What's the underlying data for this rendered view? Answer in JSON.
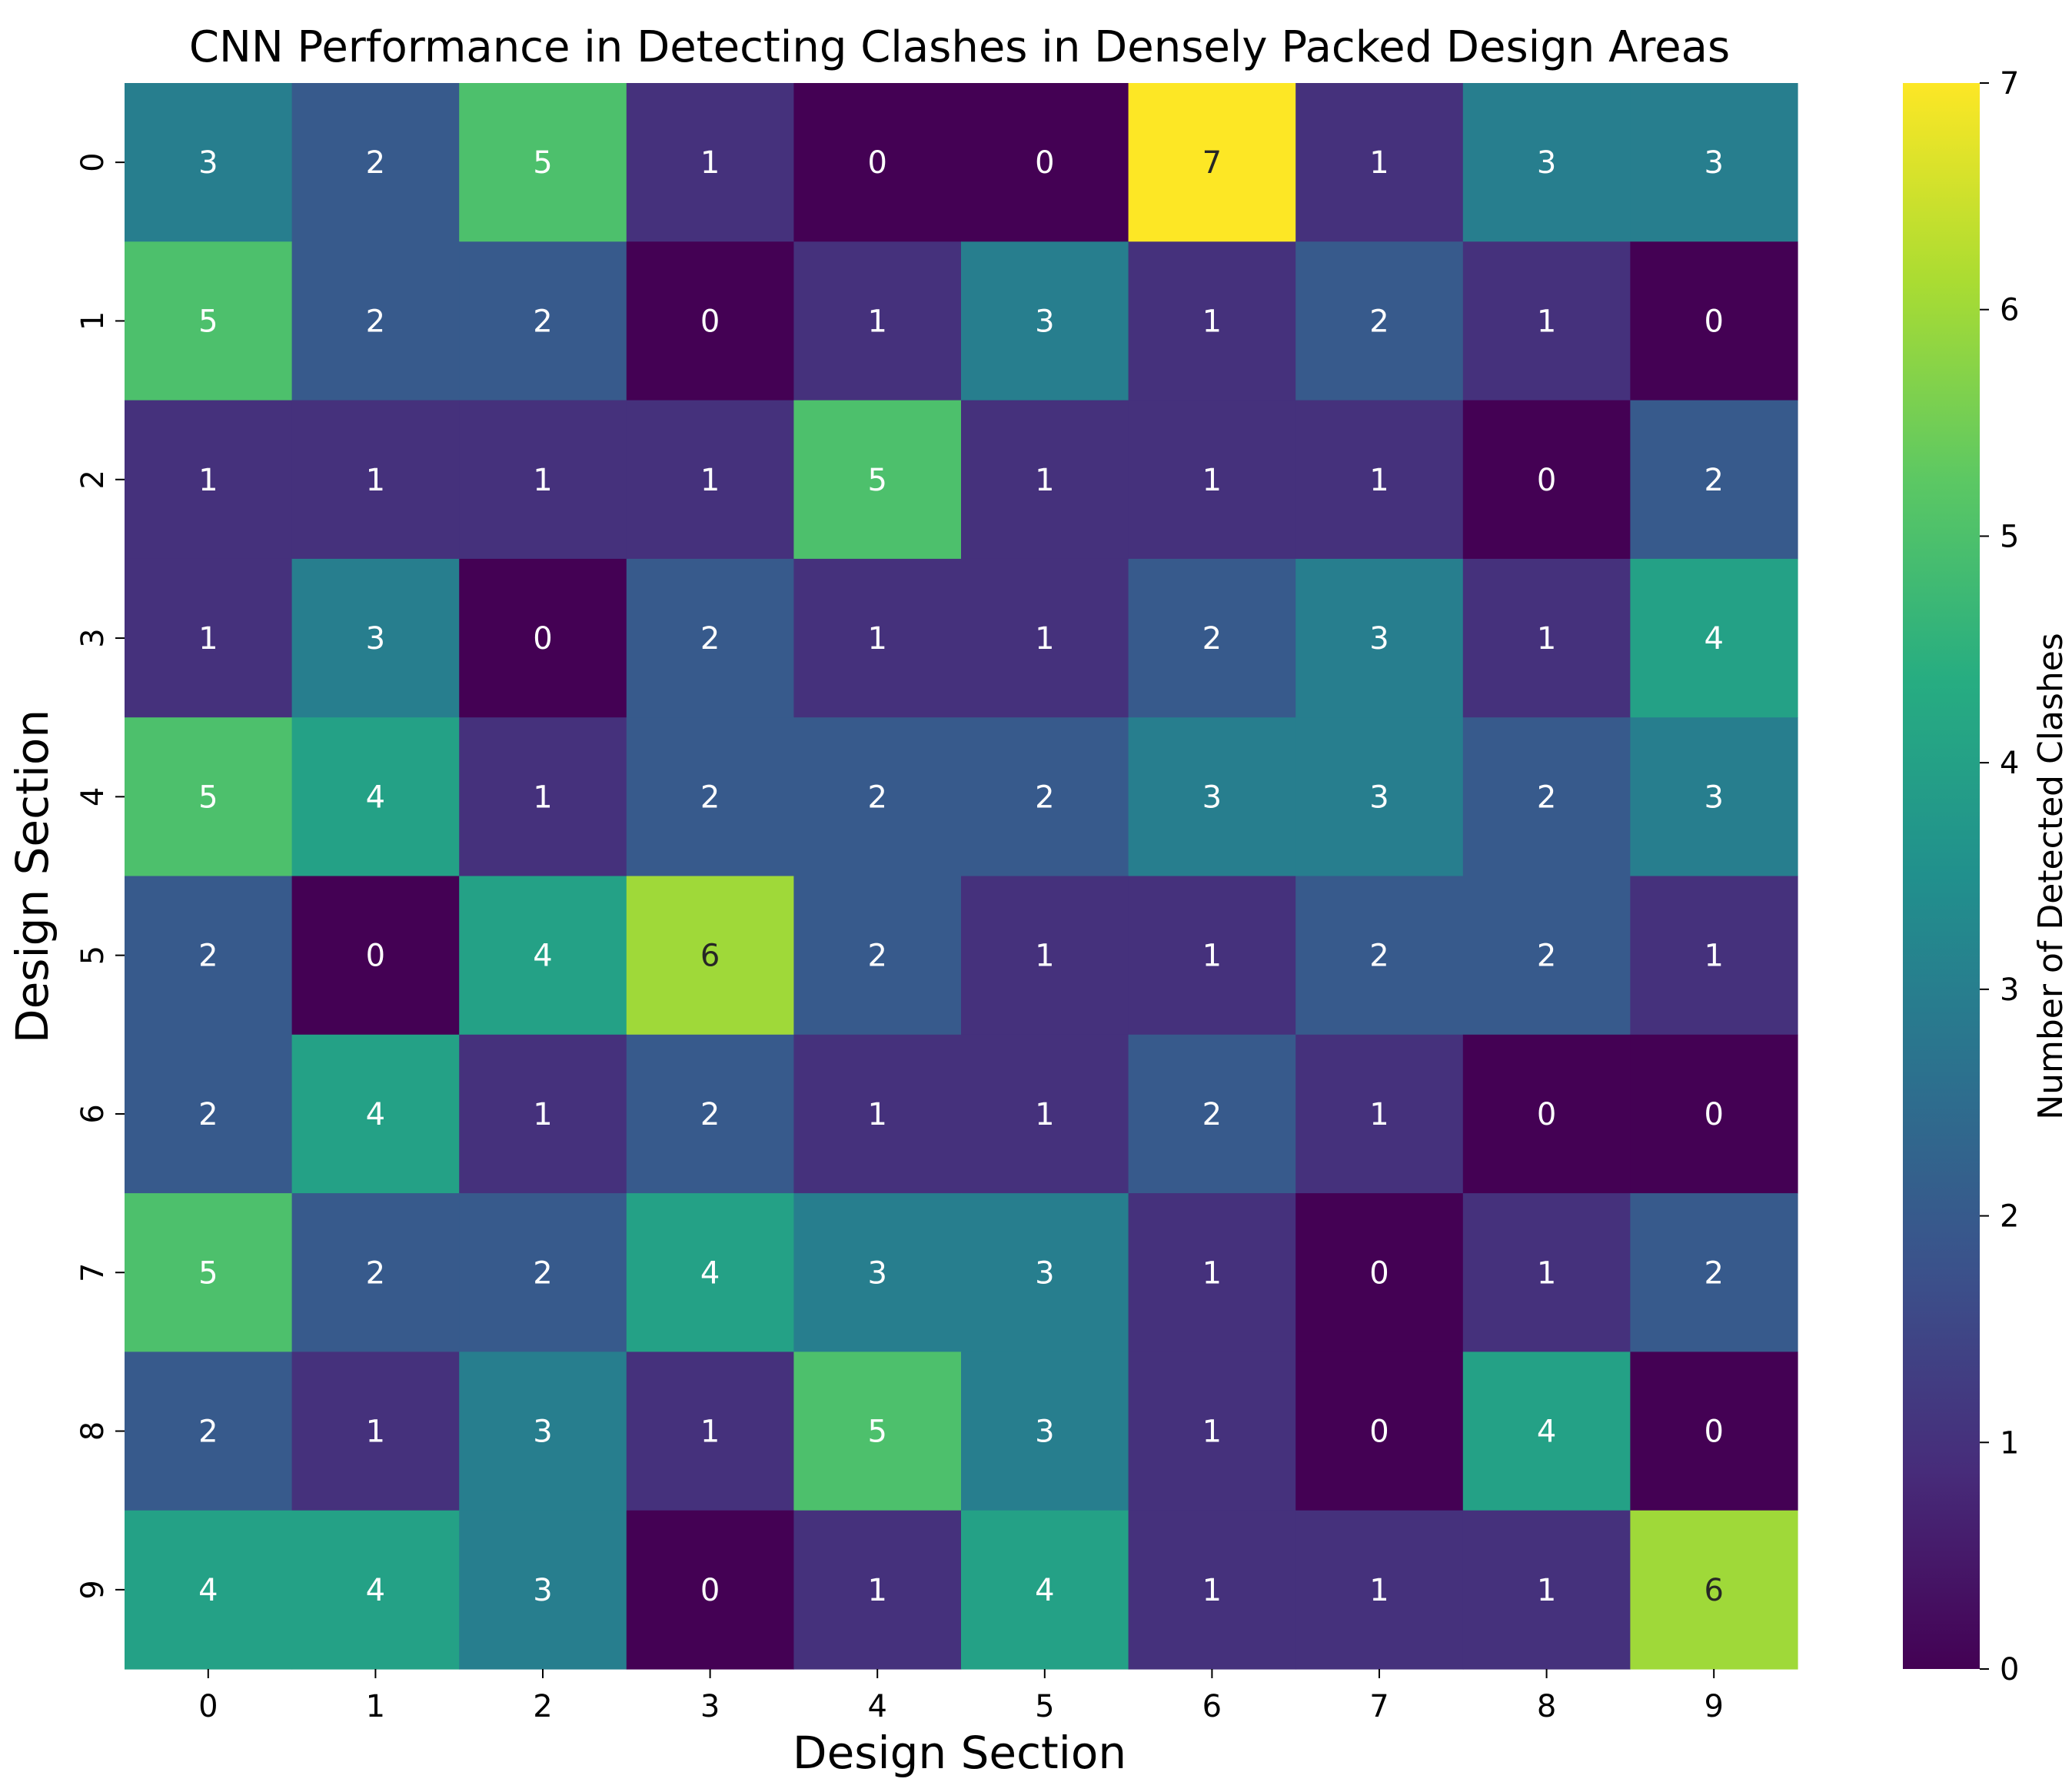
{
  "chart_data": {
    "type": "heatmap",
    "title": "CNN Performance in Detecting Clashes in Densely Packed Design Areas",
    "xlabel": "Design Section",
    "ylabel": "Design Section",
    "x_ticks": [
      "0",
      "1",
      "2",
      "3",
      "4",
      "5",
      "6",
      "7",
      "8",
      "9"
    ],
    "y_ticks": [
      "0",
      "1",
      "2",
      "3",
      "4",
      "5",
      "6",
      "7",
      "8",
      "9"
    ],
    "values": [
      [
        3,
        2,
        5,
        1,
        0,
        0,
        7,
        1,
        3,
        3
      ],
      [
        5,
        2,
        2,
        0,
        1,
        3,
        1,
        2,
        1,
        0
      ],
      [
        1,
        1,
        1,
        1,
        5,
        1,
        1,
        1,
        0,
        2
      ],
      [
        1,
        3,
        0,
        2,
        1,
        1,
        2,
        3,
        1,
        4
      ],
      [
        5,
        4,
        1,
        2,
        2,
        2,
        3,
        3,
        2,
        3
      ],
      [
        2,
        0,
        4,
        6,
        2,
        1,
        1,
        2,
        2,
        1
      ],
      [
        2,
        4,
        1,
        2,
        1,
        1,
        2,
        1,
        0,
        0
      ],
      [
        5,
        2,
        2,
        4,
        3,
        3,
        1,
        0,
        1,
        2
      ],
      [
        2,
        1,
        3,
        1,
        5,
        3,
        1,
        0,
        4,
        0
      ],
      [
        4,
        4,
        3,
        0,
        1,
        4,
        1,
        1,
        1,
        6
      ]
    ],
    "colorbar": {
      "label": "Number of Detected Clashes",
      "min": 0,
      "max": 7,
      "ticks": [
        "0",
        "1",
        "2",
        "3",
        "4",
        "5",
        "6",
        "7"
      ],
      "colormap": "viridis"
    },
    "annotate": true
  }
}
